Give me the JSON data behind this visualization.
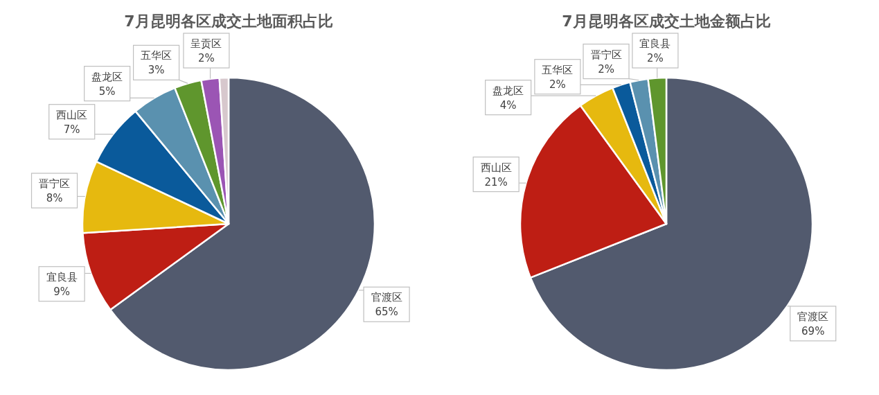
{
  "chart_data": [
    {
      "type": "pie",
      "title": "7月昆明各区成交土地面积占比",
      "categories": [
        "官渡区",
        "宜良县",
        "晋宁区",
        "西山区",
        "盘龙区",
        "五华区",
        "呈贡区",
        null
      ],
      "values": [
        65,
        9,
        8,
        7,
        5,
        3,
        2,
        1
      ],
      "value_labels": [
        "65%",
        "9%",
        "8%",
        "7%",
        "5%",
        "3%",
        "2%",
        null
      ],
      "colors": [
        "#525a6e",
        "#be1e14",
        "#e6b90f",
        "#0a5a9b",
        "#5a91af",
        "#5f962d",
        "#9b55b4",
        "#d7c8cd"
      ],
      "legend": false
    },
    {
      "type": "pie",
      "title": "7月昆明各区成交土地金额占比",
      "categories": [
        "官渡区",
        "西山区",
        "盘龙区",
        "五华区",
        "晋宁区",
        "宜良县"
      ],
      "values": [
        69,
        21,
        4,
        2,
        2,
        2
      ],
      "value_labels": [
        "69%",
        "21%",
        "4%",
        "2%",
        "2%",
        "2%"
      ],
      "colors": [
        "#525a6e",
        "#be1e14",
        "#e6b90f",
        "#0a5a9b",
        "#5a91af",
        "#5f962d"
      ],
      "legend": false
    }
  ]
}
